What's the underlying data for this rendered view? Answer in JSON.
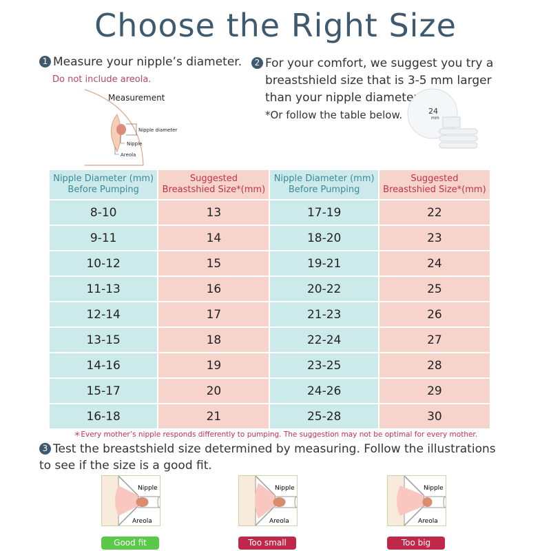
{
  "title": "Choose the Right Size",
  "step1": {
    "num": "1",
    "text": "Measure your nipple’s diameter.",
    "note": "Do not include areola.",
    "diagram": {
      "title": "Measurement",
      "nipple_diameter": "Nipple diameter",
      "nipple": "Nipple",
      "areola": "Areola"
    }
  },
  "step2": {
    "num": "2",
    "lines": [
      "For your comfort, we suggest you try a",
      "breastshield size that is 3-5 mm larger",
      "than your nipple diameter.",
      "*Or follow the table below."
    ],
    "shield_label": "24",
    "shield_unit": "mm"
  },
  "table": {
    "headers": [
      [
        "Nipple Diameter (mm)",
        "Before Pumping"
      ],
      [
        "Suggested",
        "Breastshied Size*(mm)"
      ],
      [
        "Nipple Diameter (mm)",
        "Before Pumping"
      ],
      [
        "Suggested",
        "Breastshied Size*(mm)"
      ]
    ],
    "rows": [
      [
        "8-10",
        "13",
        "17-19",
        "22"
      ],
      [
        "9-11",
        "14",
        "18-20",
        "23"
      ],
      [
        "10-12",
        "15",
        "19-21",
        "24"
      ],
      [
        "11-13",
        "16",
        "20-22",
        "25"
      ],
      [
        "12-14",
        "17",
        "21-23",
        "26"
      ],
      [
        "13-15",
        "18",
        "22-24",
        "27"
      ],
      [
        "14-16",
        "19",
        "23-25",
        "28"
      ],
      [
        "15-17",
        "20",
        "24-26",
        "29"
      ],
      [
        "16-18",
        "21",
        "25-28",
        "30"
      ]
    ]
  },
  "footnote": "＊Every mother’s nipple responds differently to pumping. The suggestion may not be optimal for every mother.",
  "step3": {
    "num": "3",
    "text": "Test the breastshield size determined by measuring. Follow the illustrations to see if the size is a good fit."
  },
  "fits": [
    {
      "label": "Good fit",
      "color": "#5cc84a",
      "nipple": "Nipple",
      "areola": "Areola"
    },
    {
      "label": "Too small",
      "color": "#c0284a",
      "nipple": "Nipple",
      "areola": "Areola"
    },
    {
      "label": "Too big",
      "color": "#c0284a",
      "nipple": "Nipple",
      "areola": "Areola"
    }
  ]
}
